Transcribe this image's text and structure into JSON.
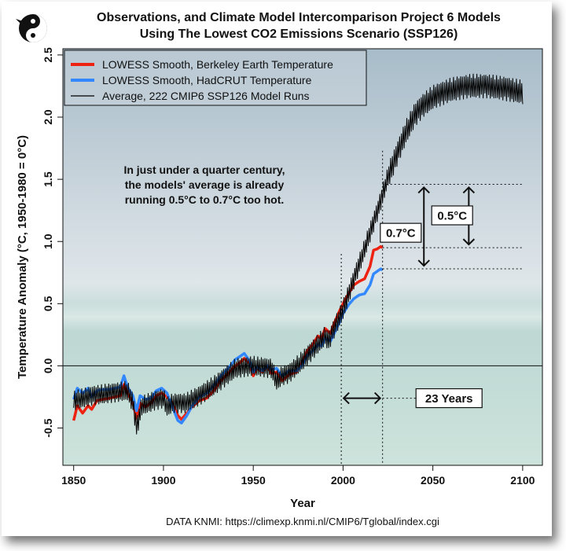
{
  "chart_data": {
    "type": "line",
    "title_line1": "Observations, and Climate Model Intercomparison Project 6 Models",
    "title_line2": "Using The Lowest CO2 Emissions Scenario (SSP126)",
    "xlabel": "Year",
    "ylabel": "Temperature Anomaly (°C, 1950-1980 = 0°C)",
    "xlim": [
      1844,
      2111
    ],
    "ylim": [
      -0.8,
      2.55
    ],
    "x_ticks": [
      "1850",
      "1900",
      "1950",
      "2000",
      "2050",
      "2100"
    ],
    "y_ticks": [
      "-0.5",
      "0.0",
      "0.5",
      "1.0",
      "1.5",
      "2.0",
      "2.5"
    ],
    "grid": false,
    "legend_position": "top-left",
    "source": "DATA KNMI: https://climexp.knmi.nl/CMIP6/Tglobal/index.cgi",
    "colors": {
      "berkeley": "#ee2211",
      "hadcrut": "#3388ff",
      "model": "#000000"
    },
    "series": [
      {
        "name": "LOWESS Smooth, Berkeley Earth Temperature",
        "color": "#ee2211",
        "points": [
          [
            1850,
            -0.44
          ],
          [
            1852,
            -0.32
          ],
          [
            1855,
            -0.38
          ],
          [
            1858,
            -0.32
          ],
          [
            1860,
            -0.35
          ],
          [
            1863,
            -0.28
          ],
          [
            1866,
            -0.27
          ],
          [
            1870,
            -0.26
          ],
          [
            1873,
            -0.25
          ],
          [
            1876,
            -0.24
          ],
          [
            1878,
            -0.15
          ],
          [
            1880,
            -0.22
          ],
          [
            1883,
            -0.3
          ],
          [
            1885,
            -0.42
          ],
          [
            1887,
            -0.3
          ],
          [
            1890,
            -0.33
          ],
          [
            1893,
            -0.3
          ],
          [
            1896,
            -0.24
          ],
          [
            1899,
            -0.22
          ],
          [
            1902,
            -0.25
          ],
          [
            1905,
            -0.3
          ],
          [
            1908,
            -0.4
          ],
          [
            1910,
            -0.43
          ],
          [
            1913,
            -0.38
          ],
          [
            1916,
            -0.33
          ],
          [
            1920,
            -0.28
          ],
          [
            1924,
            -0.26
          ],
          [
            1928,
            -0.2
          ],
          [
            1932,
            -0.12
          ],
          [
            1936,
            -0.06
          ],
          [
            1940,
            0.0
          ],
          [
            1943,
            0.03
          ],
          [
            1945,
            0.06
          ],
          [
            1948,
            0.02
          ],
          [
            1950,
            -0.08
          ],
          [
            1952,
            -0.02
          ],
          [
            1955,
            -0.05
          ],
          [
            1958,
            0.0
          ],
          [
            1960,
            -0.06
          ],
          [
            1963,
            -0.05
          ],
          [
            1966,
            -0.12
          ],
          [
            1970,
            -0.07
          ],
          [
            1974,
            -0.05
          ],
          [
            1977,
            0.02
          ],
          [
            1980,
            0.12
          ],
          [
            1983,
            0.17
          ],
          [
            1986,
            0.24
          ],
          [
            1988,
            0.22
          ],
          [
            1990,
            0.3
          ],
          [
            1993,
            0.26
          ],
          [
            1995,
            0.34
          ],
          [
            1998,
            0.44
          ],
          [
            2000,
            0.5
          ],
          [
            2003,
            0.58
          ],
          [
            2006,
            0.65
          ],
          [
            2009,
            0.68
          ],
          [
            2012,
            0.7
          ],
          [
            2015,
            0.8
          ],
          [
            2017,
            0.93
          ],
          [
            2019,
            0.94
          ],
          [
            2021,
            0.96
          ],
          [
            2022,
            0.95
          ]
        ]
      },
      {
        "name": "LOWESS Smooth, HadCRUT Temperature",
        "color": "#3388ff",
        "points": [
          [
            1850,
            -0.27
          ],
          [
            1852,
            -0.18
          ],
          [
            1855,
            -0.22
          ],
          [
            1858,
            -0.18
          ],
          [
            1860,
            -0.25
          ],
          [
            1863,
            -0.2
          ],
          [
            1866,
            -0.19
          ],
          [
            1870,
            -0.19
          ],
          [
            1873,
            -0.18
          ],
          [
            1876,
            -0.17
          ],
          [
            1878,
            -0.08
          ],
          [
            1880,
            -0.17
          ],
          [
            1883,
            -0.24
          ],
          [
            1885,
            -0.36
          ],
          [
            1887,
            -0.24
          ],
          [
            1890,
            -0.27
          ],
          [
            1893,
            -0.26
          ],
          [
            1896,
            -0.2
          ],
          [
            1899,
            -0.18
          ],
          [
            1902,
            -0.22
          ],
          [
            1905,
            -0.33
          ],
          [
            1908,
            -0.44
          ],
          [
            1910,
            -0.46
          ],
          [
            1913,
            -0.4
          ],
          [
            1916,
            -0.32
          ],
          [
            1920,
            -0.25
          ],
          [
            1924,
            -0.22
          ],
          [
            1928,
            -0.16
          ],
          [
            1932,
            -0.08
          ],
          [
            1936,
            -0.02
          ],
          [
            1940,
            0.05
          ],
          [
            1943,
            0.08
          ],
          [
            1945,
            0.1
          ],
          [
            1948,
            0.04
          ],
          [
            1950,
            -0.05
          ],
          [
            1952,
            -0.01
          ],
          [
            1955,
            -0.04
          ],
          [
            1958,
            0.0
          ],
          [
            1960,
            -0.03
          ],
          [
            1963,
            -0.02
          ],
          [
            1966,
            -0.08
          ],
          [
            1970,
            -0.04
          ],
          [
            1974,
            -0.04
          ],
          [
            1977,
            0.0
          ],
          [
            1980,
            0.08
          ],
          [
            1983,
            0.12
          ],
          [
            1986,
            0.17
          ],
          [
            1988,
            0.16
          ],
          [
            1990,
            0.22
          ],
          [
            1993,
            0.2
          ],
          [
            1995,
            0.26
          ],
          [
            1998,
            0.35
          ],
          [
            2000,
            0.42
          ],
          [
            2003,
            0.49
          ],
          [
            2006,
            0.54
          ],
          [
            2009,
            0.57
          ],
          [
            2012,
            0.58
          ],
          [
            2015,
            0.65
          ],
          [
            2017,
            0.74
          ],
          [
            2019,
            0.76
          ],
          [
            2021,
            0.78
          ],
          [
            2022,
            0.77
          ]
        ]
      },
      {
        "name": "Average, 222 CMIP6 SSP126 Model Runs",
        "color": "#000000",
        "amplitude": 0.09,
        "points": [
          [
            1850,
            -0.28
          ],
          [
            1860,
            -0.24
          ],
          [
            1870,
            -0.22
          ],
          [
            1880,
            -0.2
          ],
          [
            1883,
            -0.3
          ],
          [
            1885,
            -0.5
          ],
          [
            1888,
            -0.32
          ],
          [
            1895,
            -0.28
          ],
          [
            1900,
            -0.26
          ],
          [
            1902,
            -0.33
          ],
          [
            1905,
            -0.3
          ],
          [
            1912,
            -0.3
          ],
          [
            1920,
            -0.24
          ],
          [
            1930,
            -0.14
          ],
          [
            1940,
            -0.02
          ],
          [
            1950,
            0.0
          ],
          [
            1960,
            -0.02
          ],
          [
            1963,
            -0.12
          ],
          [
            1966,
            -0.08
          ],
          [
            1970,
            -0.06
          ],
          [
            1980,
            0.08
          ],
          [
            1990,
            0.24
          ],
          [
            1992,
            0.2
          ],
          [
            1995,
            0.3
          ],
          [
            2000,
            0.45
          ],
          [
            2010,
            0.86
          ],
          [
            2015,
            1.07
          ],
          [
            2020,
            1.28
          ],
          [
            2022,
            1.38
          ],
          [
            2025,
            1.52
          ],
          [
            2030,
            1.7
          ],
          [
            2035,
            1.88
          ],
          [
            2040,
            2.02
          ],
          [
            2045,
            2.1
          ],
          [
            2050,
            2.16
          ],
          [
            2060,
            2.22
          ],
          [
            2070,
            2.25
          ],
          [
            2080,
            2.25
          ],
          [
            2090,
            2.23
          ],
          [
            2100,
            2.2
          ]
        ]
      }
    ],
    "annotations": {
      "note_line1": "In just under a quarter century,",
      "note_line2": "the models' average is already",
      "note_line3": "running 0.5°C to 0.7°C too hot.",
      "label_07": "0.7°C",
      "label_05": "0.5°C",
      "label_years": "23 Years",
      "start_year": 1999,
      "end_year": 2022,
      "model_level": 1.46,
      "berkeley_level": 0.95,
      "hadcrut_level": 0.78
    },
    "logo_icon": "yin-yang-bird-logo"
  }
}
